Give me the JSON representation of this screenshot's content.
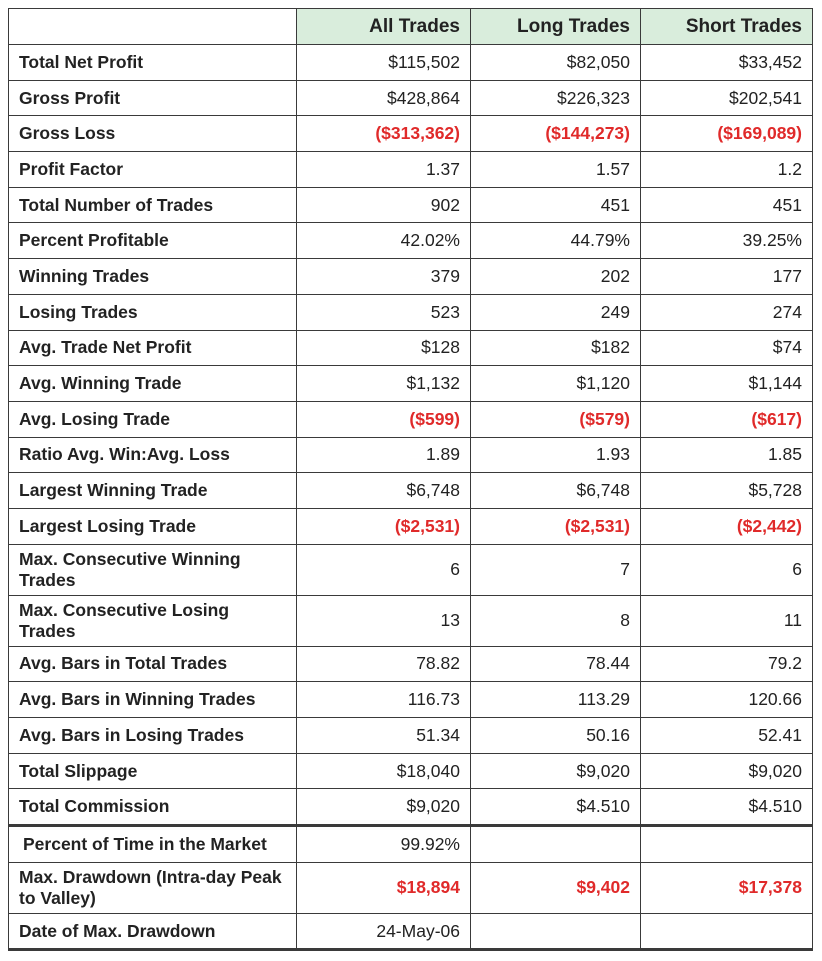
{
  "headers": [
    "",
    "All Trades",
    "Long Trades",
    "Short Trades"
  ],
  "rows": [
    {
      "label": "Total Net Profit",
      "values": [
        "$115,502",
        "$82,050",
        "$33,452"
      ],
      "negative": false
    },
    {
      "label": "Gross Profit",
      "values": [
        "$428,864",
        "$226,323",
        "$202,541"
      ],
      "negative": false
    },
    {
      "label": "Gross Loss",
      "values": [
        "($313,362)",
        "($144,273)",
        "($169,089)"
      ],
      "negative": true
    },
    {
      "label": "Profit Factor",
      "values": [
        "1.37",
        "1.57",
        "1.2"
      ],
      "negative": false
    },
    {
      "label": "Total Number of Trades",
      "values": [
        "902",
        "451",
        "451"
      ],
      "negative": false
    },
    {
      "label": "Percent Profitable",
      "values": [
        "42.02%",
        "44.79%",
        "39.25%"
      ],
      "negative": false
    },
    {
      "label": "Winning Trades",
      "values": [
        "379",
        "202",
        "177"
      ],
      "negative": false
    },
    {
      "label": "Losing Trades",
      "values": [
        "523",
        "249",
        "274"
      ],
      "negative": false
    },
    {
      "label": "Avg. Trade Net Profit",
      "values": [
        "$128",
        "$182",
        "$74"
      ],
      "negative": false
    },
    {
      "label": "Avg. Winning Trade",
      "values": [
        "$1,132",
        "$1,120",
        "$1,144"
      ],
      "negative": false
    },
    {
      "label": "Avg. Losing Trade",
      "values": [
        "($599)",
        "($579)",
        "($617)"
      ],
      "negative": true
    },
    {
      "label": "Ratio Avg. Win:Avg. Loss",
      "values": [
        "1.89",
        "1.93",
        "1.85"
      ],
      "negative": false
    },
    {
      "label": "Largest Winning Trade",
      "values": [
        "$6,748",
        "$6,748",
        "$5,728"
      ],
      "negative": false
    },
    {
      "label": "Largest Losing Trade",
      "values": [
        "($2,531)",
        "($2,531)",
        "($2,442)"
      ],
      "negative": true
    },
    {
      "label": "Max. Consecutive Winning Trades",
      "values": [
        "6",
        "7",
        "6"
      ],
      "negative": false,
      "tall": true
    },
    {
      "label": "Max. Consecutive Losing Trades",
      "values": [
        "13",
        "8",
        "11"
      ],
      "negative": false,
      "tall": true
    },
    {
      "label": "Avg. Bars in Total Trades",
      "values": [
        "78.82",
        "78.44",
        "79.2"
      ],
      "negative": false
    },
    {
      "label": "Avg. Bars in Winning Trades",
      "values": [
        "116.73",
        "113.29",
        "120.66"
      ],
      "negative": false
    },
    {
      "label": "Avg. Bars in Losing Trades",
      "values": [
        "51.34",
        "50.16",
        "52.41"
      ],
      "negative": false
    },
    {
      "label": "Total Slippage",
      "values": [
        "$18,040",
        "$9,020",
        "$9,020"
      ],
      "negative": false
    },
    {
      "label": "Total Commission",
      "values": [
        "$9,020",
        "$4.510",
        "$4.510"
      ],
      "negative": false
    },
    {
      "label": "Percent of Time in the Market",
      "values": [
        "99.92%",
        "",
        ""
      ],
      "negative": false,
      "separator": true,
      "pad": true
    },
    {
      "label": "Max. Drawdown (Intra-day Peak to Valley)",
      "values": [
        "$18,894",
        "$9,402",
        "$17,378"
      ],
      "negative": true,
      "tall": true
    },
    {
      "label": "Date of Max. Drawdown",
      "values": [
        "24-May-06",
        "",
        ""
      ],
      "negative": false,
      "last": true
    }
  ],
  "colors": {
    "header_bg": "#d9eddc",
    "negative": "#e02a2a"
  }
}
